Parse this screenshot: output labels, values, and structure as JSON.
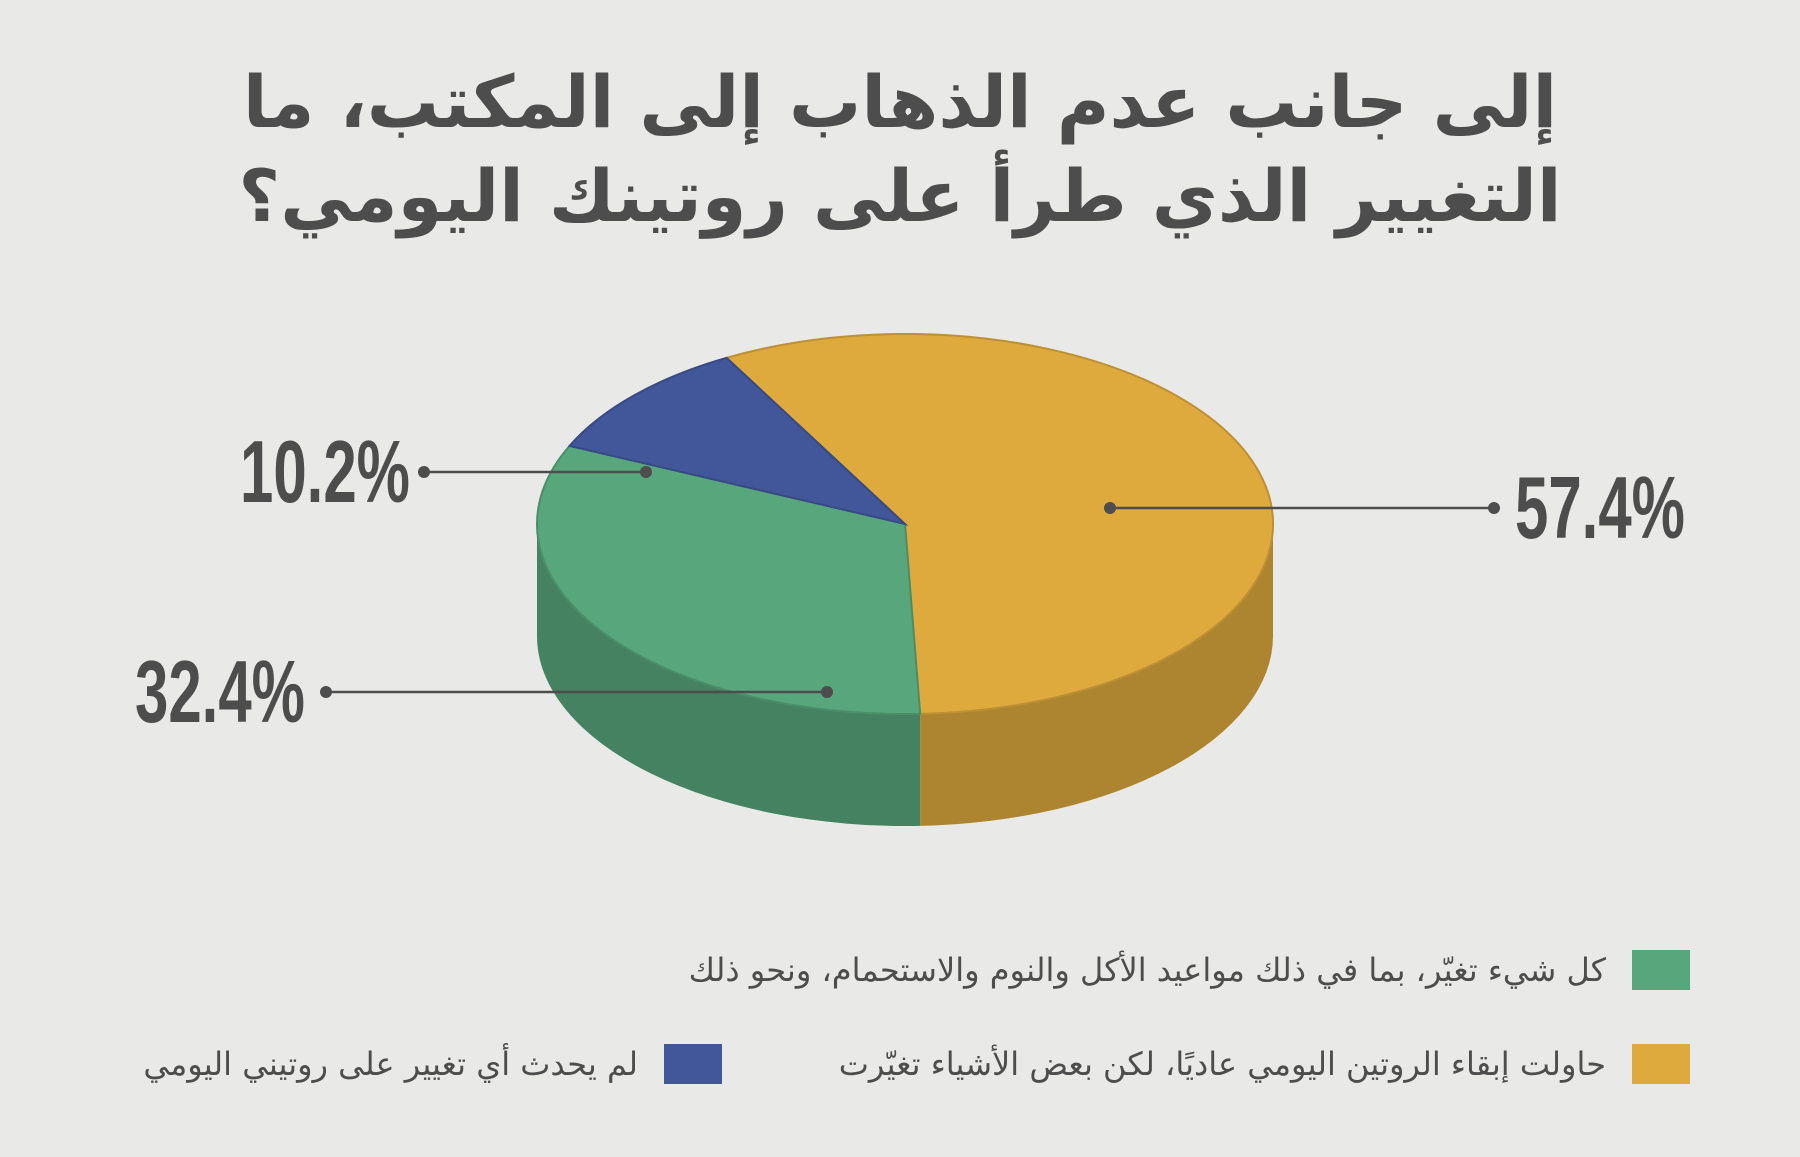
{
  "chart_data": {
    "type": "pie",
    "title": "إلى جانب عدم الذهاب إلى المكتب، ما التغيير الذي طرأ على روتينك اليومي؟",
    "slices": [
      {
        "label": "حاولت إبقاء الروتين اليومي عاديًا، لكن بعض الأشياء تغيّرت",
        "value": 57.4,
        "value_label": "57.4%",
        "color": "#dea93d"
      },
      {
        "label": "كل شيء تغيّر، بما في ذلك مواعيد الأكل والنوم والاستحمام، ونحو ذلك",
        "value": 32.4,
        "value_label": "32.4%",
        "color": "#58a77c"
      },
      {
        "label": "لم يحدث أي تغيير على روتيني اليومي",
        "value": 10.2,
        "value_label": "10.2%",
        "color": "#42579a"
      }
    ],
    "legend_position": "bottom"
  }
}
